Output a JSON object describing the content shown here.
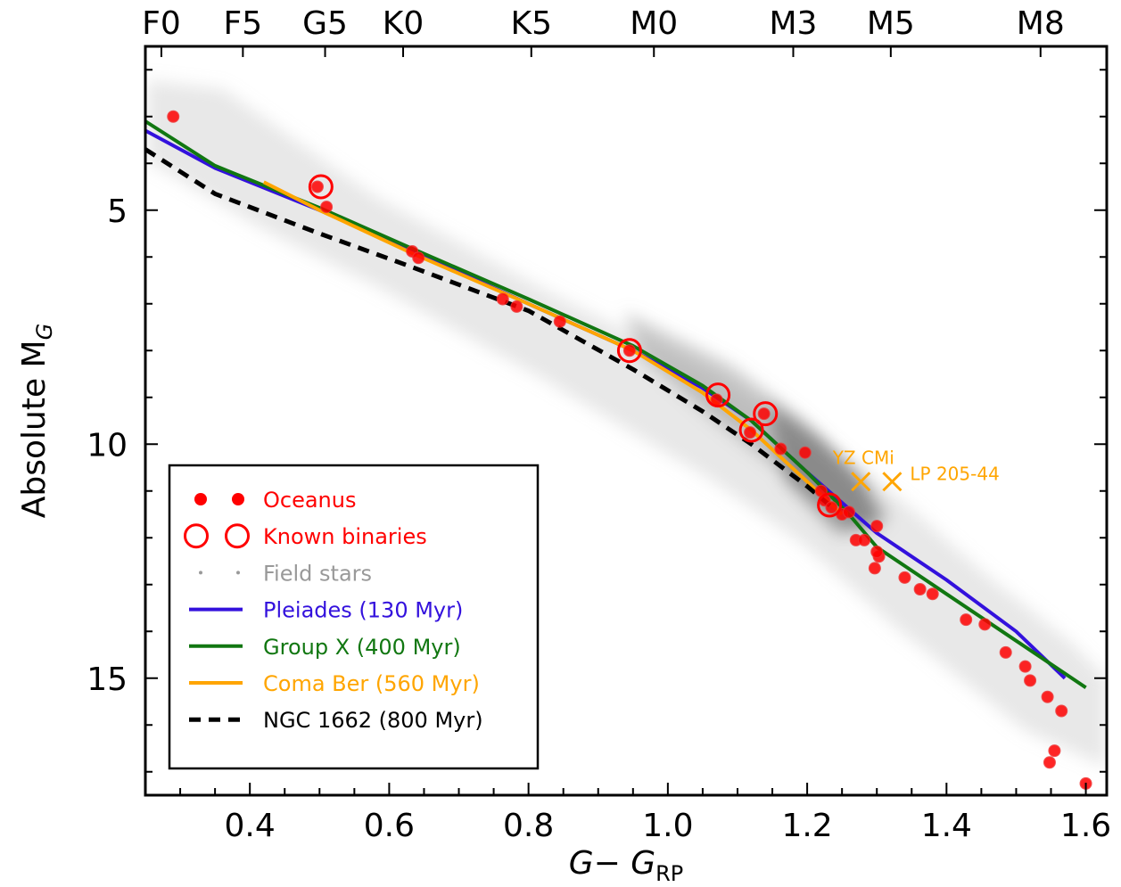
{
  "chart_data": {
    "type": "scatter",
    "xlabel": "G− G",
    "xlabel_sub": "RP",
    "ylabel": "Absolute M",
    "ylabel_sub": "G",
    "xlim": [
      0.25,
      1.63
    ],
    "ylim": [
      17.5,
      1.5
    ],
    "y_inverted": true,
    "x_ticks": [
      0.4,
      0.6,
      0.8,
      1.0,
      1.2,
      1.4,
      1.6
    ],
    "x_tick_labels": [
      "0.4",
      "0.6",
      "0.8",
      "1.0",
      "1.2",
      "1.4",
      "1.6"
    ],
    "y_ticks": [
      5,
      10,
      15
    ],
    "y_tick_labels": [
      "5",
      "10",
      "15"
    ],
    "spectral_types": [
      {
        "label": "F0",
        "x": 0.273
      },
      {
        "label": "F5",
        "x": 0.39
      },
      {
        "label": "G5",
        "x": 0.508
      },
      {
        "label": "K0",
        "x": 0.62
      },
      {
        "label": "K5",
        "x": 0.804
      },
      {
        "label": "M0",
        "x": 0.98
      },
      {
        "label": "M3",
        "x": 1.18
      },
      {
        "label": "M5",
        "x": 1.32
      },
      {
        "label": "M8",
        "x": 1.535
      }
    ],
    "grid": false,
    "legend_position": "lower-left",
    "legend": [
      {
        "label": "Oceanus",
        "marker": "dot",
        "color": "#ff0000"
      },
      {
        "label": "Known binaries",
        "marker": "ring",
        "color": "#ff0000"
      },
      {
        "label": "Field stars",
        "marker": "small-dot",
        "color": "#999999"
      },
      {
        "label": "Pleiades (130 Myr)",
        "marker": "line",
        "color": "#3311dd"
      },
      {
        "label": "Group X (400 Myr)",
        "marker": "line",
        "color": "#117711"
      },
      {
        "label": "Coma Ber (560 Myr)",
        "marker": "line",
        "color": "#ffa500"
      },
      {
        "label": "NGC 1662 (800 Myr)",
        "marker": "dashed-line",
        "color": "#000000"
      }
    ],
    "series": [
      {
        "name": "Pleiades (130 Myr)",
        "color": "#3311dd",
        "style": "solid",
        "x": [
          0.25,
          0.35,
          0.5,
          0.63,
          0.8,
          0.95,
          1.05,
          1.12,
          1.2,
          1.3,
          1.4,
          1.5,
          1.57
        ],
        "y": [
          3.3,
          4.1,
          5.0,
          5.85,
          7.0,
          8.0,
          8.8,
          9.5,
          10.6,
          11.9,
          12.9,
          14.0,
          15.0
        ]
      },
      {
        "name": "Group X (400 Myr)",
        "color": "#117711",
        "style": "solid",
        "x": [
          0.25,
          0.35,
          0.5,
          0.63,
          0.8,
          0.95,
          1.05,
          1.12,
          1.2,
          1.26,
          1.3,
          1.4,
          1.5,
          1.6
        ],
        "y": [
          3.1,
          4.05,
          4.95,
          5.8,
          6.9,
          7.9,
          8.75,
          9.5,
          10.6,
          11.5,
          12.2,
          13.2,
          14.2,
          15.2
        ]
      },
      {
        "name": "Coma Ber (560 Myr)",
        "color": "#ffa500",
        "style": "solid",
        "x": [
          0.42,
          0.5,
          0.63,
          0.8,
          0.95,
          1.05,
          1.12,
          1.2,
          1.25
        ],
        "y": [
          4.4,
          5.0,
          5.9,
          7.0,
          8.0,
          8.9,
          9.7,
          10.8,
          11.5
        ]
      },
      {
        "name": "NGC 1662 (800 Myr)",
        "color": "#000000",
        "style": "dashed",
        "x": [
          0.25,
          0.35,
          0.5,
          0.63,
          0.8,
          0.95,
          1.05,
          1.12,
          1.2,
          1.24
        ],
        "y": [
          3.7,
          4.65,
          5.5,
          6.2,
          7.15,
          8.4,
          9.3,
          10.0,
          10.9,
          11.4
        ]
      },
      {
        "name": "Oceanus",
        "color": "#ff0000",
        "style": "points",
        "x": [
          0.29,
          0.497,
          0.51,
          0.633,
          0.642,
          0.763,
          0.783,
          0.845,
          0.945,
          1.07,
          1.138,
          1.118,
          1.162,
          1.197,
          1.22,
          1.225,
          1.235,
          1.25,
          1.26,
          1.27,
          1.282,
          1.3,
          1.297,
          1.303,
          1.3,
          1.34,
          1.362,
          1.38,
          1.428,
          1.455,
          1.485,
          1.513,
          1.52,
          1.545,
          1.565,
          1.555,
          1.548,
          1.6
        ],
        "y": [
          3.0,
          4.5,
          4.93,
          5.88,
          6.02,
          6.9,
          7.06,
          7.38,
          8.0,
          9.05,
          9.35,
          9.75,
          10.1,
          10.18,
          11.0,
          11.2,
          11.35,
          11.5,
          11.45,
          12.05,
          12.05,
          11.75,
          12.65,
          12.4,
          12.3,
          12.85,
          13.1,
          13.2,
          13.75,
          13.85,
          14.45,
          14.75,
          15.05,
          15.4,
          15.7,
          16.55,
          16.8,
          17.25
        ]
      },
      {
        "name": "Known binaries",
        "color": "#ff0000",
        "style": "rings",
        "x": [
          0.502,
          0.945,
          1.072,
          1.14,
          1.12,
          1.232
        ],
        "y": [
          4.5,
          8.0,
          8.95,
          9.35,
          9.7,
          11.3
        ]
      }
    ],
    "annotations": [
      {
        "label": "YZ CMi",
        "x": 1.277,
        "y": 10.8,
        "marker": "x",
        "color": "#ffa500"
      },
      {
        "label": "LP 205-44",
        "x": 1.322,
        "y": 10.8,
        "marker": "x",
        "color": "#ffa500"
      }
    ]
  }
}
